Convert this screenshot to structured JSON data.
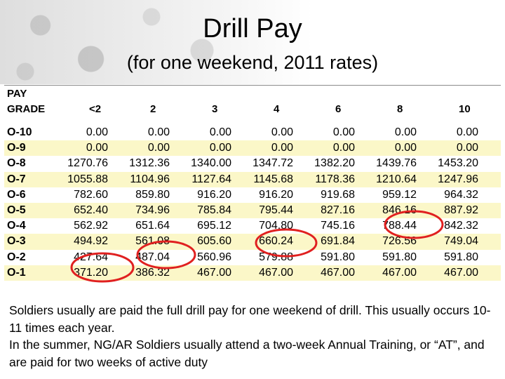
{
  "title": "Drill Pay",
  "subtitle": "(for one weekend, 2011 rates)",
  "table": {
    "header_top": "PAY",
    "header_grade": "GRADE",
    "columns": [
      "<2",
      "2",
      "3",
      "4",
      "6",
      "8",
      "10"
    ],
    "rows": [
      {
        "grade": "O-10",
        "values": [
          "0.00",
          "0.00",
          "0.00",
          "0.00",
          "0.00",
          "0.00",
          "0.00"
        ]
      },
      {
        "grade": "O-9",
        "values": [
          "0.00",
          "0.00",
          "0.00",
          "0.00",
          "0.00",
          "0.00",
          "0.00"
        ]
      },
      {
        "grade": "O-8",
        "values": [
          "1270.76",
          "1312.36",
          "1340.00",
          "1347.72",
          "1382.20",
          "1439.76",
          "1453.20"
        ]
      },
      {
        "grade": "O-7",
        "values": [
          "1055.88",
          "1104.96",
          "1127.64",
          "1145.68",
          "1178.36",
          "1210.64",
          "1247.96"
        ]
      },
      {
        "grade": "O-6",
        "values": [
          "782.60",
          "859.80",
          "916.20",
          "916.20",
          "919.68",
          "959.12",
          "964.32"
        ]
      },
      {
        "grade": "O-5",
        "values": [
          "652.40",
          "734.96",
          "785.84",
          "795.44",
          "827.16",
          "846.16",
          "887.92"
        ]
      },
      {
        "grade": "O-4",
        "values": [
          "562.92",
          "651.64",
          "695.12",
          "704.80",
          "745.16",
          "788.44",
          "842.32"
        ]
      },
      {
        "grade": "O-3",
        "values": [
          "494.92",
          "561.08",
          "605.60",
          "660.24",
          "691.84",
          "726.56",
          "749.04"
        ]
      },
      {
        "grade": "O-2",
        "values": [
          "427.64",
          "487.04",
          "560.96",
          "579.88",
          "591.80",
          "591.80",
          "591.80"
        ]
      },
      {
        "grade": "O-1",
        "values": [
          "371.20",
          "386.32",
          "467.00",
          "467.00",
          "467.00",
          "467.00",
          "467.00"
        ]
      }
    ],
    "highlight_color": "#e02020",
    "shade_color": "#fbf7c8"
  },
  "caption": {
    "paragraph1": "Soldiers usually are paid the full drill pay for one weekend of drill.  This usually occurs 10-11 times each year.",
    "paragraph2": "In the summer, NG/AR Soldiers usually attend a two-week Annual Training, or “AT”, and are paid for two weeks of active duty"
  }
}
